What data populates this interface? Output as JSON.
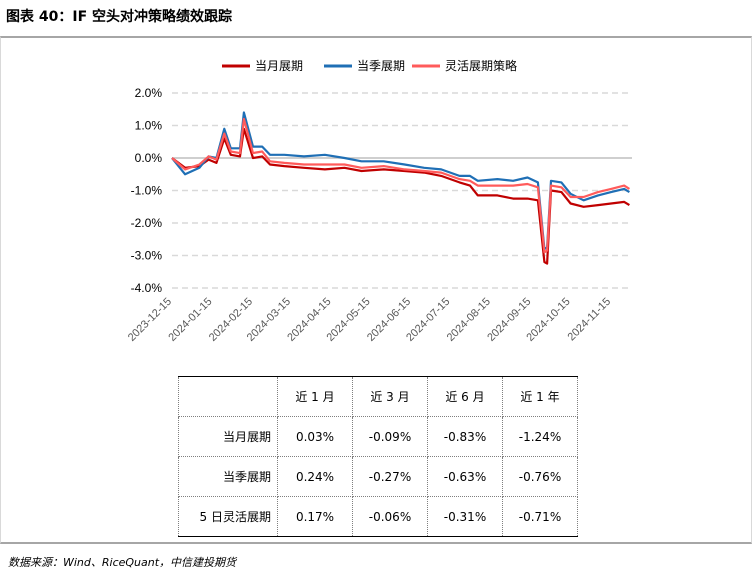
{
  "title": "图表 40：IF 空头对冲策略绩效跟踪",
  "source": "数据来源：Wind、RiceQuant，中信建投期货",
  "chart_data": {
    "type": "line",
    "legend_placement": "top-center",
    "grid": "horizontal-dashed",
    "ylim": [
      -4.0,
      2.0
    ],
    "y_ticks": [
      "2.0%",
      "1.0%",
      "0.0%",
      "-1.0%",
      "-2.0%",
      "-3.0%",
      "-4.0%"
    ],
    "y_tick_values": [
      2.0,
      1.0,
      0.0,
      -1.0,
      -2.0,
      -3.0,
      -4.0
    ],
    "x_ticks": [
      "2023-12-15",
      "2024-01-15",
      "2024-02-15",
      "2024-03-15",
      "2024-04-15",
      "2024-05-15",
      "2024-06-15",
      "2024-07-15",
      "2024-08-15",
      "2024-09-15",
      "2024-10-15",
      "2024-11-15"
    ],
    "x_range": [
      "2023-12-15",
      "2024-12-01"
    ],
    "series": [
      {
        "name": "当月展期",
        "color": "#c00000",
        "points": [
          [
            "2023-12-15",
            0.0
          ],
          [
            "2023-12-25",
            -0.3
          ],
          [
            "2024-01-05",
            -0.25
          ],
          [
            "2024-01-12",
            -0.05
          ],
          [
            "2024-01-18",
            -0.15
          ],
          [
            "2024-01-24",
            0.6
          ],
          [
            "2024-01-29",
            0.1
          ],
          [
            "2024-02-05",
            0.05
          ],
          [
            "2024-02-08",
            0.9
          ],
          [
            "2024-02-15",
            0.0
          ],
          [
            "2024-02-22",
            0.05
          ],
          [
            "2024-02-28",
            -0.2
          ],
          [
            "2024-03-10",
            -0.25
          ],
          [
            "2024-03-25",
            -0.3
          ],
          [
            "2024-04-10",
            -0.35
          ],
          [
            "2024-04-25",
            -0.3
          ],
          [
            "2024-05-08",
            -0.4
          ],
          [
            "2024-05-25",
            -0.35
          ],
          [
            "2024-06-10",
            -0.4
          ],
          [
            "2024-06-25",
            -0.45
          ],
          [
            "2024-07-08",
            -0.55
          ],
          [
            "2024-07-22",
            -0.75
          ],
          [
            "2024-07-30",
            -0.85
          ],
          [
            "2024-08-05",
            -1.15
          ],
          [
            "2024-08-20",
            -1.15
          ],
          [
            "2024-09-01",
            -1.25
          ],
          [
            "2024-09-12",
            -1.25
          ],
          [
            "2024-09-20",
            -1.3
          ],
          [
            "2024-09-25",
            -3.2
          ],
          [
            "2024-09-27",
            -3.25
          ],
          [
            "2024-09-30",
            -1.0
          ],
          [
            "2024-10-08",
            -1.05
          ],
          [
            "2024-10-15",
            -1.4
          ],
          [
            "2024-10-25",
            -1.5
          ],
          [
            "2024-11-05",
            -1.45
          ],
          [
            "2024-11-15",
            -1.4
          ],
          [
            "2024-11-25",
            -1.35
          ],
          [
            "2024-11-29",
            -1.45
          ]
        ]
      },
      {
        "name": "当季展期",
        "color": "#1f6fb5",
        "points": [
          [
            "2023-12-15",
            0.0
          ],
          [
            "2023-12-25",
            -0.5
          ],
          [
            "2024-01-05",
            -0.3
          ],
          [
            "2024-01-12",
            0.05
          ],
          [
            "2024-01-18",
            0.0
          ],
          [
            "2024-01-24",
            0.9
          ],
          [
            "2024-01-29",
            0.3
          ],
          [
            "2024-02-05",
            0.3
          ],
          [
            "2024-02-08",
            1.4
          ],
          [
            "2024-02-15",
            0.35
          ],
          [
            "2024-02-22",
            0.35
          ],
          [
            "2024-02-28",
            0.1
          ],
          [
            "2024-03-10",
            0.1
          ],
          [
            "2024-03-25",
            0.05
          ],
          [
            "2024-04-10",
            0.1
          ],
          [
            "2024-04-25",
            0.0
          ],
          [
            "2024-05-08",
            -0.1
          ],
          [
            "2024-05-25",
            -0.1
          ],
          [
            "2024-06-10",
            -0.2
          ],
          [
            "2024-06-25",
            -0.3
          ],
          [
            "2024-07-08",
            -0.35
          ],
          [
            "2024-07-22",
            -0.55
          ],
          [
            "2024-07-30",
            -0.55
          ],
          [
            "2024-08-05",
            -0.7
          ],
          [
            "2024-08-20",
            -0.65
          ],
          [
            "2024-09-01",
            -0.7
          ],
          [
            "2024-09-12",
            -0.6
          ],
          [
            "2024-09-20",
            -0.75
          ],
          [
            "2024-09-25",
            -2.8
          ],
          [
            "2024-09-27",
            -2.75
          ],
          [
            "2024-09-30",
            -0.7
          ],
          [
            "2024-10-08",
            -0.75
          ],
          [
            "2024-10-15",
            -1.1
          ],
          [
            "2024-10-25",
            -1.3
          ],
          [
            "2024-11-05",
            -1.15
          ],
          [
            "2024-11-15",
            -1.05
          ],
          [
            "2024-11-25",
            -0.95
          ],
          [
            "2024-11-29",
            -1.05
          ]
        ]
      },
      {
        "name": "灵活展期策略",
        "color": "#ff5b5b",
        "points": [
          [
            "2023-12-15",
            0.0
          ],
          [
            "2023-12-25",
            -0.35
          ],
          [
            "2024-01-05",
            -0.2
          ],
          [
            "2024-01-12",
            0.05
          ],
          [
            "2024-01-18",
            -0.05
          ],
          [
            "2024-01-24",
            0.75
          ],
          [
            "2024-01-29",
            0.2
          ],
          [
            "2024-02-05",
            0.15
          ],
          [
            "2024-02-08",
            1.2
          ],
          [
            "2024-02-15",
            0.15
          ],
          [
            "2024-02-22",
            0.2
          ],
          [
            "2024-02-28",
            -0.1
          ],
          [
            "2024-03-10",
            -0.15
          ],
          [
            "2024-03-25",
            -0.2
          ],
          [
            "2024-04-10",
            -0.2
          ],
          [
            "2024-04-25",
            -0.2
          ],
          [
            "2024-05-08",
            -0.3
          ],
          [
            "2024-05-25",
            -0.25
          ],
          [
            "2024-06-10",
            -0.35
          ],
          [
            "2024-06-25",
            -0.4
          ],
          [
            "2024-07-08",
            -0.45
          ],
          [
            "2024-07-22",
            -0.65
          ],
          [
            "2024-07-30",
            -0.7
          ],
          [
            "2024-08-05",
            -0.85
          ],
          [
            "2024-08-20",
            -0.85
          ],
          [
            "2024-09-01",
            -0.85
          ],
          [
            "2024-09-12",
            -0.8
          ],
          [
            "2024-09-20",
            -0.9
          ],
          [
            "2024-09-25",
            -2.9
          ],
          [
            "2024-09-27",
            -2.85
          ],
          [
            "2024-09-30",
            -0.85
          ],
          [
            "2024-10-08",
            -0.9
          ],
          [
            "2024-10-15",
            -1.2
          ],
          [
            "2024-10-25",
            -1.2
          ],
          [
            "2024-11-05",
            -1.05
          ],
          [
            "2024-11-15",
            -0.95
          ],
          [
            "2024-11-25",
            -0.85
          ],
          [
            "2024-11-29",
            -0.95
          ]
        ]
      }
    ]
  },
  "table": {
    "headers": [
      "近 1 月",
      "近 3 月",
      "近 6 月",
      "近 1 年"
    ],
    "rows": [
      {
        "label": "当月展期",
        "values": [
          "0.03%",
          "-0.09%",
          "-0.83%",
          "-1.24%"
        ]
      },
      {
        "label": "当季展期",
        "values": [
          "0.24%",
          "-0.27%",
          "-0.63%",
          "-0.76%"
        ]
      },
      {
        "label": "5 日灵活展期",
        "values": [
          "0.17%",
          "-0.06%",
          "-0.31%",
          "-0.71%"
        ]
      }
    ]
  }
}
